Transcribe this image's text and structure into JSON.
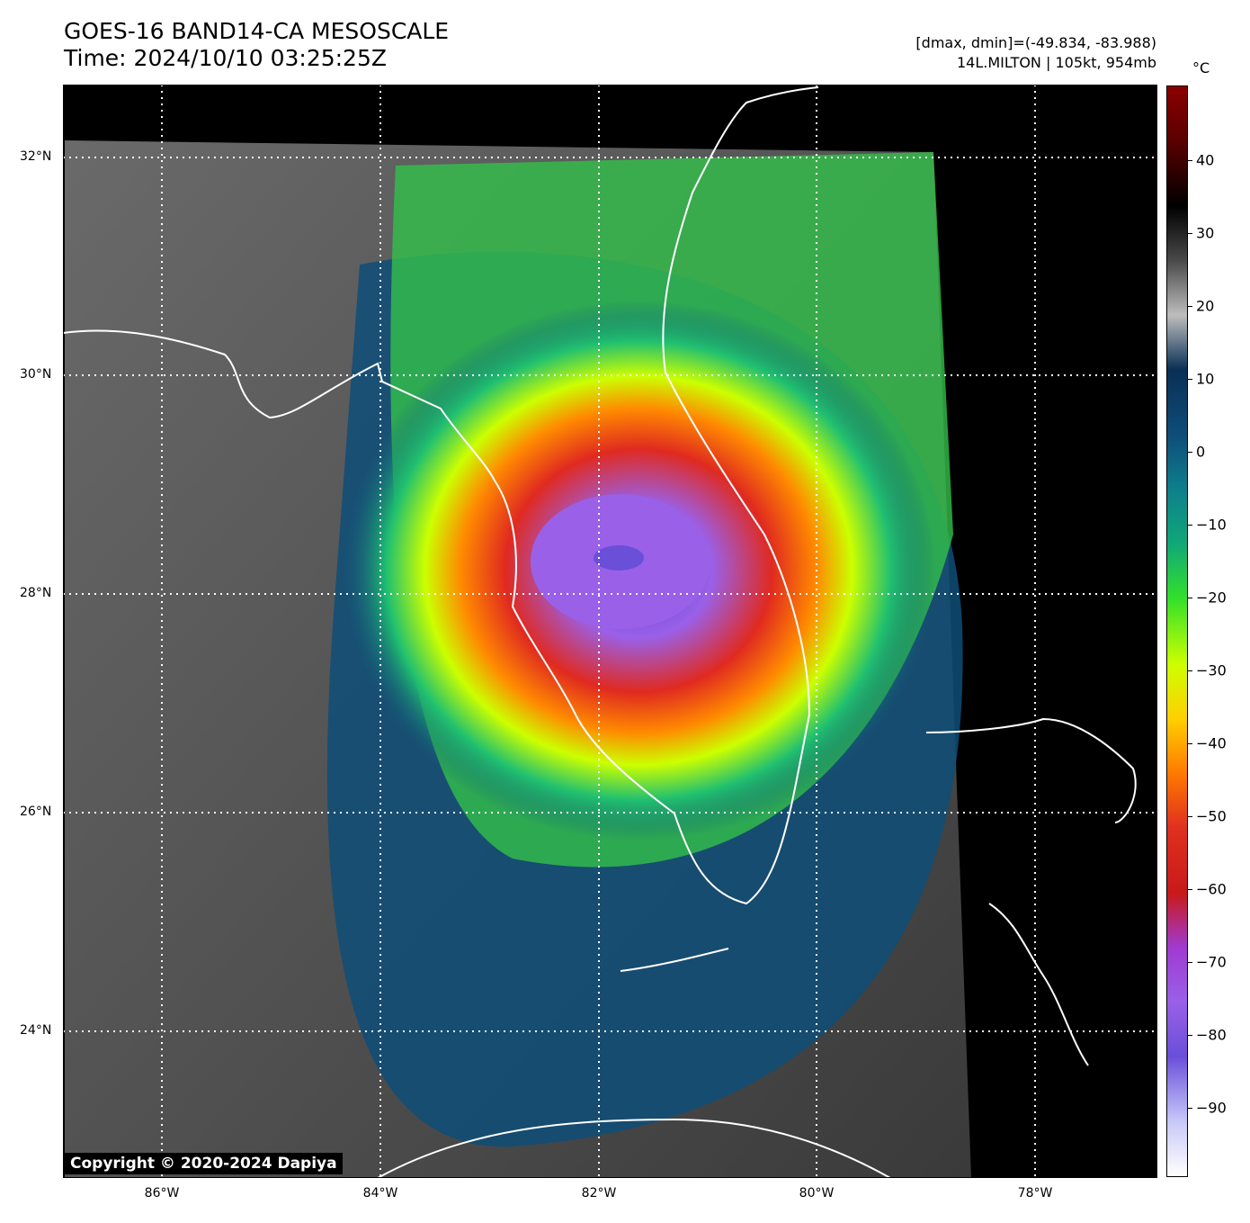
{
  "header": {
    "title": "GOES-16 BAND14-CA MESOSCALE",
    "time": "Time: 2024/10/10 03:25:25Z",
    "range": "[dmax, dmin]=(-49.834, -83.988)",
    "storm": "14L.MILTON | 105kt, 954mb"
  },
  "axes": {
    "lat_labels": [
      "32°N",
      "30°N",
      "28°N",
      "26°N",
      "24°N"
    ],
    "lon_labels": [
      "86°W",
      "84°W",
      "82°W",
      "80°W",
      "78°W"
    ]
  },
  "colorbar": {
    "unit": "°C",
    "labels": [
      "40",
      "30",
      "20",
      "10",
      "0",
      "−10",
      "−20",
      "−30",
      "−40",
      "−50",
      "−60",
      "−70",
      "−80",
      "−90"
    ],
    "colors": [
      "#ffffff",
      "#c8c8f8",
      "#6a4fd8",
      "#9a60e8",
      "#a03ad0",
      "#c81a1a",
      "#e03020",
      "#ff7a00",
      "#ffd000",
      "#ccff00",
      "#33e02a",
      "#10a878",
      "#0e7f8c",
      "#0e4d78",
      "#0a2f55",
      "#bdbdbd",
      "#4a4a4a",
      "#000000",
      "#5a0000",
      "#8b0000"
    ]
  },
  "map": {
    "background": "#000000",
    "coast_color": "#ffffff",
    "grid_color": "#ffffff"
  },
  "copyright": "Copyright © 2020-2024 Dapiya"
}
